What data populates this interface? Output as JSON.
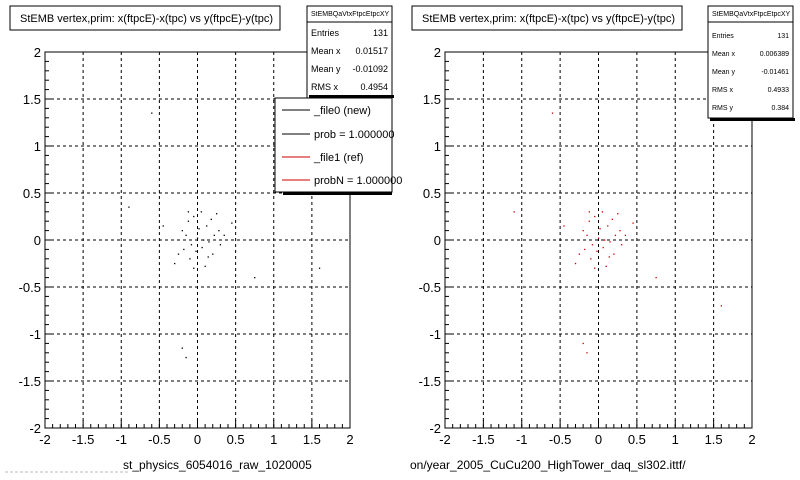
{
  "chart_data": [
    {
      "type": "scatter",
      "title": "StEMB  vertex,prim: x(ftpcE)-x(tpc) vs y(ftpcE)-y(tpc)",
      "xlim": [
        -2,
        2
      ],
      "ylim": [
        -2,
        2
      ],
      "xticks": [
        "-2",
        "-1.5",
        "-1",
        "-0.5",
        "0",
        "0.5",
        "1",
        "1.5",
        "2"
      ],
      "yticks": [
        "2",
        "1.5",
        "1",
        "0.5",
        "0",
        "-0.5",
        "-1",
        "-1.5",
        "-2"
      ],
      "grid": true,
      "series": [
        {
          "name": "_file0 (new)",
          "color": "#000000",
          "x": [
            -0.6,
            -0.45,
            -0.2,
            -0.12,
            -0.05,
            0.05,
            0.12,
            0.18,
            0.25,
            -0.15,
            -0.08,
            0.0,
            0.08,
            0.15,
            0.22,
            -0.25,
            -0.18,
            -0.1,
            -0.02,
            0.06,
            0.14,
            0.28,
            0.35,
            -0.3,
            -0.05,
            0.1,
            0.2,
            0.02,
            -0.12,
            0.3,
            0.45,
            -0.9,
            1.6,
            0.75,
            -0.2,
            -0.15
          ],
          "y": [
            1.35,
            0.15,
            0.1,
            0.2,
            0.25,
            0.3,
            0.15,
            0.22,
            0.28,
            0.05,
            -0.05,
            0.02,
            0.0,
            -0.02,
            0.05,
            -0.15,
            -0.1,
            -0.2,
            -0.12,
            -0.08,
            -0.18,
            0.1,
            0.05,
            -0.25,
            -0.3,
            -0.28,
            -0.15,
            0.12,
            0.3,
            -0.05,
            0.18,
            0.35,
            -0.3,
            -0.4,
            -1.15,
            -1.25
          ]
        },
        {
          "name": "_file1 (ref)",
          "color": "#cc0000",
          "x": [],
          "y": []
        }
      ],
      "stats": {
        "title": "StEMBQaVtxFtpcEtpcXY",
        "entries": "131",
        "mean_x": "0.01517",
        "mean_y": "-0.01092",
        "rms_x": "0.4954"
      },
      "legend": [
        {
          "label": "_file0 (new)",
          "color": "#000000"
        },
        {
          "label": "prob = 1.000000",
          "color": "#000000"
        },
        {
          "label": "_file1 (ref)",
          "color": "#cc0000"
        },
        {
          "label": "probN = 1.000000",
          "color": "#cc0000"
        }
      ],
      "footer": "st_physics_6054016_raw_1020005"
    },
    {
      "type": "scatter",
      "title": "StEMB  vertex,prim: x(ftpcE)-x(tpc) vs y(ftpcE)-y(tpc)",
      "xlim": [
        -2,
        2
      ],
      "ylim": [
        -2,
        2
      ],
      "xticks": [
        "-2",
        "-1.5",
        "-1",
        "-0.5",
        "0",
        "0.5",
        "1",
        "1.5",
        "2"
      ],
      "yticks": [
        "2",
        "1.5",
        "1",
        "0.5",
        "0",
        "-0.5",
        "-1",
        "-1.5",
        "-2"
      ],
      "grid": true,
      "series": [
        {
          "name": "_file1 (ref)",
          "color": "#cc0000",
          "x": [
            -0.6,
            -0.45,
            -0.2,
            -0.12,
            -0.05,
            0.05,
            0.12,
            0.18,
            0.25,
            -0.15,
            -0.08,
            0.0,
            0.08,
            0.15,
            0.22,
            -0.25,
            -0.18,
            -0.1,
            -0.02,
            0.06,
            0.14,
            0.28,
            0.35,
            -0.3,
            -0.05,
            0.1,
            0.2,
            0.02,
            -0.12,
            0.3,
            0.45,
            -1.1,
            1.6,
            0.75,
            -0.2,
            -0.15
          ],
          "y": [
            1.35,
            0.15,
            0.1,
            0.2,
            0.25,
            0.3,
            0.15,
            0.22,
            0.28,
            0.05,
            -0.05,
            0.02,
            0.0,
            -0.02,
            0.05,
            -0.15,
            -0.1,
            -0.2,
            -0.12,
            -0.08,
            -0.18,
            0.1,
            0.05,
            -0.25,
            -0.3,
            -0.28,
            -0.15,
            0.12,
            0.3,
            -0.05,
            0.18,
            0.3,
            -0.7,
            -0.4,
            -1.1,
            -1.2
          ]
        }
      ],
      "stats": {
        "title": "StEMBQaVtxFtpcEtpcXY",
        "entries": "131",
        "mean_x": "0.006389",
        "mean_y": "-0.01461",
        "rms_x": "0.4933",
        "rms_y": "0.384"
      },
      "footer": "on/year_2005_CuCu200_HighTower_daq_sl302.ittf/"
    }
  ],
  "labels": {
    "entries": "Entries",
    "mean_x": "Mean x",
    "mean_y": "Mean y",
    "rms_x": "RMS x",
    "rms_y": "RMS y"
  }
}
